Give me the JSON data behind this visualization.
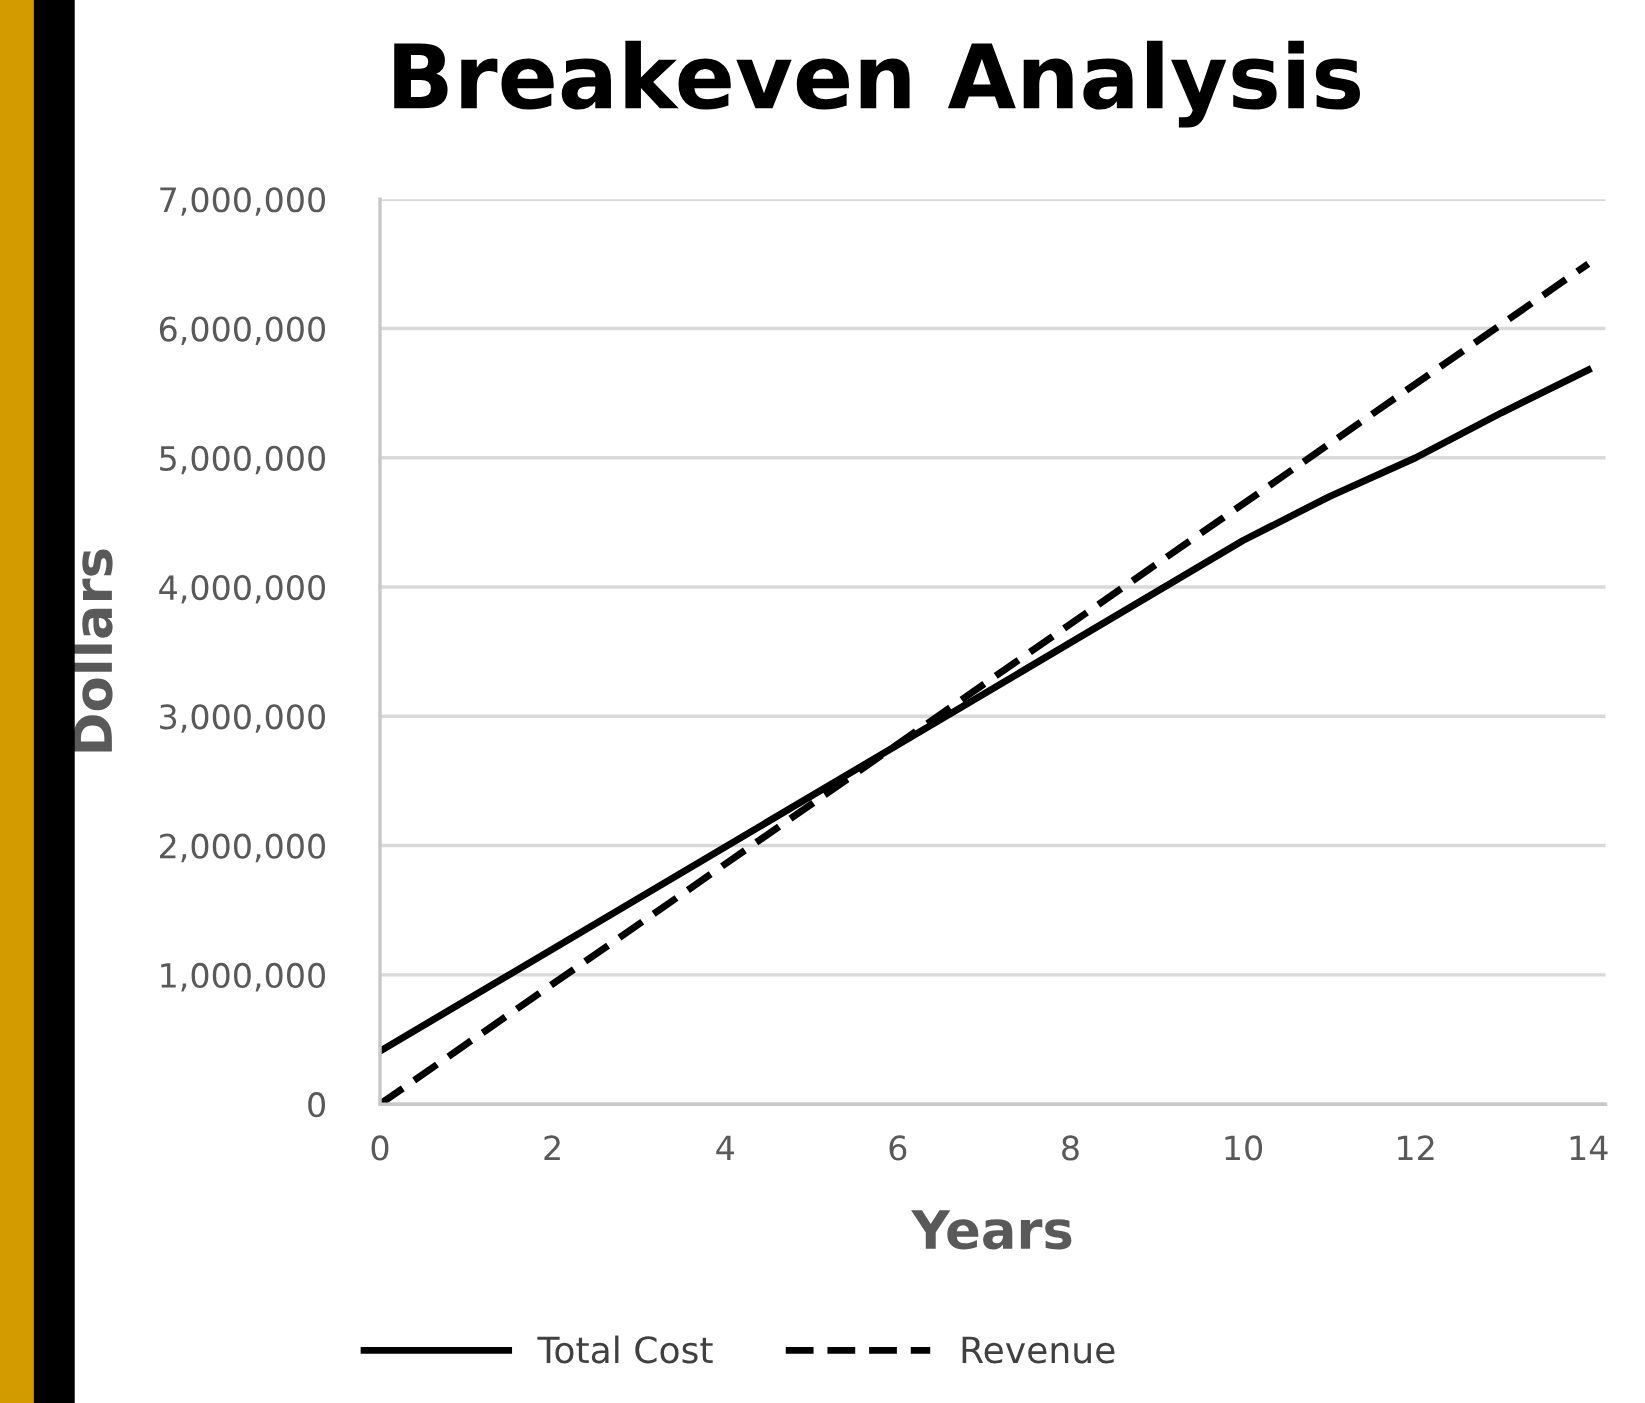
{
  "chart_data": {
    "type": "line",
    "title": "Breakeven Analysis",
    "xlabel": "Years",
    "ylabel": "Dollars",
    "series": [
      {
        "name": "Total Cost",
        "color": "#000000",
        "line_style": "solid",
        "x": [
          0,
          10,
          11,
          12,
          13,
          14
        ],
        "values": [
          410000,
          4360000,
          4700000,
          5000000,
          5350000,
          5680000
        ]
      },
      {
        "name": "Revenue",
        "color": "#000000",
        "line_style": "dashed",
        "x": [
          0,
          14
        ],
        "values": [
          0,
          6500000
        ]
      }
    ],
    "xlim": [
      0,
      14.2
    ],
    "xticks": [
      0,
      2,
      4,
      6,
      8,
      10,
      12,
      14
    ],
    "ylim": [
      0,
      7000000
    ],
    "yticks": [
      {
        "value": 0,
        "label": "0"
      },
      {
        "value": 1000000,
        "label": "1,000,000"
      },
      {
        "value": 2000000,
        "label": "2,000,000"
      },
      {
        "value": 3000000,
        "label": "3,000,000"
      },
      {
        "value": 4000000,
        "label": "4,000,000"
      },
      {
        "value": 5000000,
        "label": "5,000,000"
      },
      {
        "value": 6000000,
        "label": "6,000,000"
      },
      {
        "value": 7000000,
        "label": "7,000,000"
      }
    ],
    "grid": "y",
    "legend": "bottom",
    "marker": "none"
  }
}
